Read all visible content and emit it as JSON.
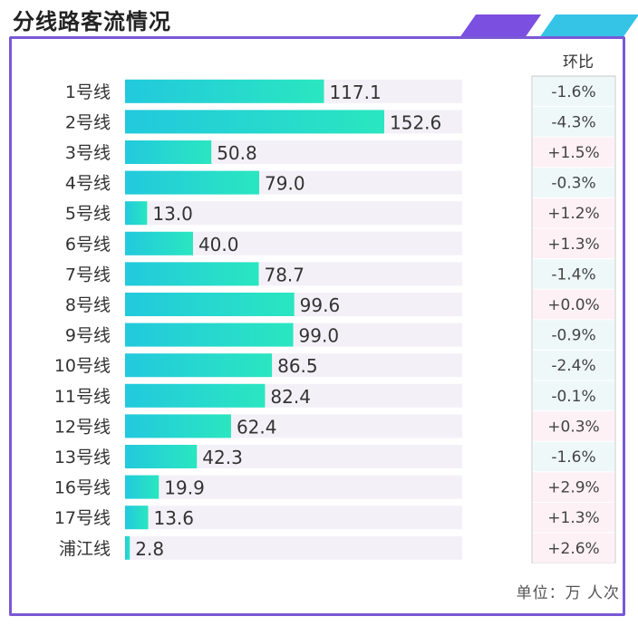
{
  "chart_data": {
    "type": "bar",
    "orientation": "horizontal",
    "title": "分线路客流情况",
    "unit_label": "单位：万 人次",
    "change_header": "环比",
    "xlim": [
      0,
      152.6
    ],
    "categories": [
      "1号线",
      "2号线",
      "3号线",
      "4号线",
      "5号线",
      "6号线",
      "7号线",
      "8号线",
      "9号线",
      "10号线",
      "11号线",
      "12号线",
      "13号线",
      "16号线",
      "17号线",
      "浦江线"
    ],
    "values": [
      117.1,
      152.6,
      50.8,
      79.0,
      13.0,
      40.0,
      78.7,
      99.6,
      99.0,
      86.5,
      82.4,
      62.4,
      42.3,
      19.9,
      13.6,
      2.8
    ],
    "value_labels": [
      "117.1",
      "152.6",
      "50.8",
      "79.0",
      "13.0",
      "40.0",
      "78.7",
      "99.6",
      "99.0",
      "86.5",
      "82.4",
      "62.4",
      "42.3",
      "19.9",
      "13.6",
      "2.8"
    ],
    "change": [
      "-1.6%",
      "-4.3%",
      "+1.5%",
      "-0.3%",
      "+1.2%",
      "+1.3%",
      "-1.4%",
      "+0.0%",
      "-0.9%",
      "-2.4%",
      "-0.1%",
      "+0.3%",
      "-1.6%",
      "+2.9%",
      "+1.3%",
      "+2.6%"
    ]
  },
  "colors": {
    "bar_start": "#22c9dd",
    "bar_end": "#2ae6c0",
    "track": "#f3f1f7",
    "frame": "#7a58d6",
    "positive_change_bg": "#fdf1f5",
    "negative_change_bg": "#eef8f9"
  }
}
